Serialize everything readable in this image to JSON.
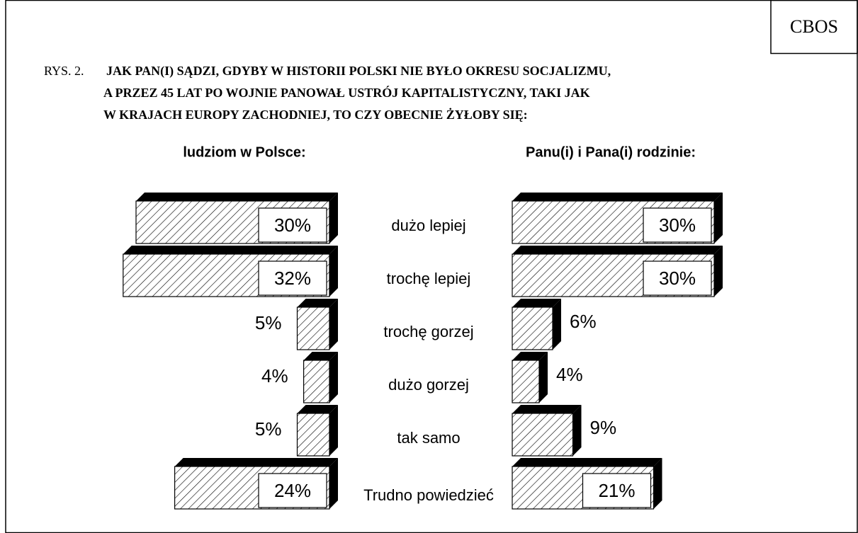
{
  "source": "CBOS",
  "figure_label": "RYS. 2.",
  "title_lines": [
    "JAK PAN(I) SĄDZI, GDYBY W HISTORII POLSKI NIE BYŁO OKRESU SOCJALIZMU,",
    "A  PRZEZ 45 LAT PO WOJNIE PANOWAŁ USTRÓJ KAPITALISTYCZNY, TAKI JAK",
    "W  KRAJACH EUROPY ZACHODNIEJ, TO CZY OBECNIE ŻYŁOBY SIĘ:"
  ],
  "chart_data": [
    {
      "type": "bar",
      "orientation": "horizontal",
      "direction": "left",
      "title": "ludziom w Polsce:",
      "categories": [
        "dużo lepiej",
        "trochę lepiej",
        "trochę gorzej",
        "dużo gorzej",
        "tak samo",
        "Trudno powiedzieć"
      ],
      "values": [
        30,
        32,
        5,
        4,
        5,
        24
      ],
      "value_labels": [
        "30%",
        "32%",
        "5%",
        "4%",
        "5%",
        "24%"
      ]
    },
    {
      "type": "bar",
      "orientation": "horizontal",
      "direction": "right",
      "title": "Panu(i) i Pana(i) rodzinie:",
      "values": [
        30,
        30,
        6,
        4,
        9,
        21
      ],
      "value_labels": [
        "30%",
        "30%",
        "6%",
        "4%",
        "9%",
        "21%"
      ]
    }
  ]
}
